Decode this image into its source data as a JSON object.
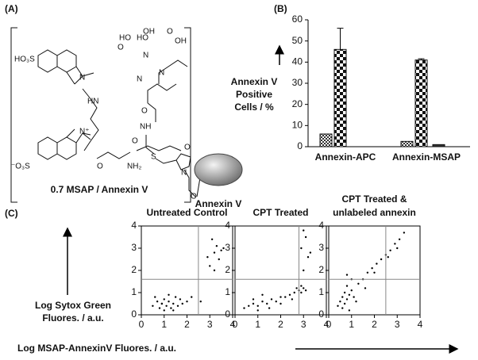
{
  "figure": {
    "panels": [
      "(A)",
      "(B)",
      "(C)"
    ],
    "c_ylabel": [
      "Log Sytox Green",
      "Fluores. / a.u."
    ],
    "c_xlabel": "Log MSAP-AnnexinV Fluores. / a.u."
  },
  "structure": {
    "labels": [
      "HO₃S",
      "N",
      "N⁺",
      "⁻O₃S",
      "HO",
      "O",
      "OH",
      "HO",
      "O",
      "OH",
      "N",
      "N",
      "N",
      "O",
      "HN",
      "NH",
      "O",
      "O",
      "S",
      "NH₂",
      "N",
      "O",
      "O"
    ],
    "caption": "0.7 MSAP / Annexin V",
    "protein": "Annexin V"
  },
  "chart_data": [
    {
      "type": "bar",
      "ylabel": [
        "Annexin V",
        "Positive",
        "Cells / %"
      ],
      "categories": [
        "Annexin-APC",
        "Annexin-MSAP"
      ],
      "series": [
        {
          "values": [
            6,
            2.5
          ],
          "fill": "hatch"
        },
        {
          "values": [
            46,
            41
          ],
          "errors": [
            10,
            0.6
          ],
          "fill": "checker"
        },
        {
          "values": [
            null,
            1
          ],
          "fill": "#333333"
        }
      ],
      "ylim": [
        0,
        60
      ],
      "yticks": [
        0,
        10,
        20,
        30,
        40,
        50,
        60
      ]
    },
    {
      "type": "scatter",
      "title": "Untreated Control",
      "x": [
        0.5,
        0.7,
        0.8,
        0.9,
        1.0,
        1.1,
        1.2,
        1.3,
        1.4,
        1.5,
        1.6,
        1.8,
        2.0,
        1.0,
        1.2,
        0.6,
        1.4,
        1.7,
        0.9,
        2.2,
        2.6,
        3.0,
        3.2,
        3.3,
        3.4,
        3.1,
        3.5,
        3.2,
        2.9,
        3.6
      ],
      "y": [
        0.4,
        0.6,
        0.3,
        0.5,
        0.7,
        0.4,
        0.6,
        0.3,
        0.5,
        0.8,
        0.4,
        0.5,
        0.6,
        0.2,
        0.9,
        0.8,
        0.2,
        0.7,
        0.5,
        0.8,
        0.6,
        2.2,
        2.8,
        3.1,
        2.5,
        3.4,
        2.9,
        2.0,
        2.6,
        3.0
      ],
      "gate": {
        "x": 2.5,
        "y": 1.6
      },
      "xlim": [
        0,
        4
      ],
      "ylim": [
        0,
        4
      ],
      "xticks": [
        0,
        1,
        2,
        3,
        4
      ],
      "yticks": [
        0,
        1,
        2,
        3,
        4
      ]
    },
    {
      "type": "scatter",
      "title": "CPT Treated",
      "x": [
        0.4,
        0.6,
        0.8,
        1.0,
        1.2,
        1.4,
        1.6,
        1.8,
        2.0,
        2.2,
        2.4,
        2.6,
        2.8,
        2.9,
        3.0,
        3.1,
        2.7,
        2.9,
        1.0,
        1.5,
        2.0,
        0.8,
        2.5,
        3.0,
        3.2,
        2.9,
        3.1,
        3.3,
        3.0,
        1.2
      ],
      "y": [
        0.3,
        0.4,
        0.5,
        0.4,
        0.6,
        0.5,
        0.7,
        0.6,
        0.8,
        0.8,
        0.9,
        1.0,
        1.1,
        1.3,
        1.2,
        1.1,
        1.2,
        1.0,
        0.2,
        0.3,
        0.5,
        0.7,
        0.7,
        2.0,
        2.6,
        3.0,
        3.5,
        2.8,
        3.8,
        0.9
      ],
      "gate": {
        "x": 2.8,
        "y": 1.6
      },
      "xlim": [
        0,
        4
      ],
      "ylim": [
        0,
        4
      ],
      "xticks": [
        0,
        1,
        2,
        3,
        4
      ],
      "yticks": [
        0,
        1,
        2,
        3,
        4
      ]
    },
    {
      "type": "scatter",
      "title": [
        "CPT Treated &",
        "unlabeled annexin"
      ],
      "x": [
        0.5,
        0.6,
        0.7,
        0.8,
        0.9,
        1.0,
        0.7,
        0.8,
        1.1,
        0.6,
        1.3,
        1.5,
        1.7,
        1.9,
        2.1,
        2.3,
        2.5,
        2.7,
        2.9,
        3.1,
        3.3,
        0.4,
        0.9,
        1.2,
        2.0,
        2.6,
        3.0,
        1.0,
        0.8,
        1.6
      ],
      "y": [
        0.6,
        0.8,
        1.0,
        0.7,
        0.9,
        1.1,
        0.5,
        1.3,
        0.8,
        0.3,
        1.4,
        1.6,
        1.9,
        2.1,
        2.3,
        2.5,
        2.7,
        2.9,
        3.2,
        3.4,
        3.7,
        0.4,
        0.2,
        0.6,
        1.9,
        2.6,
        3.0,
        1.6,
        1.8,
        1.2
      ],
      "gate": {
        "x": 2.5,
        "y": 1.6
      },
      "xlim": [
        0,
        4
      ],
      "ylim": [
        0,
        4
      ],
      "xticks": [
        0,
        1,
        2,
        3,
        4
      ],
      "yticks": [
        0,
        1,
        2,
        3,
        4
      ]
    }
  ]
}
